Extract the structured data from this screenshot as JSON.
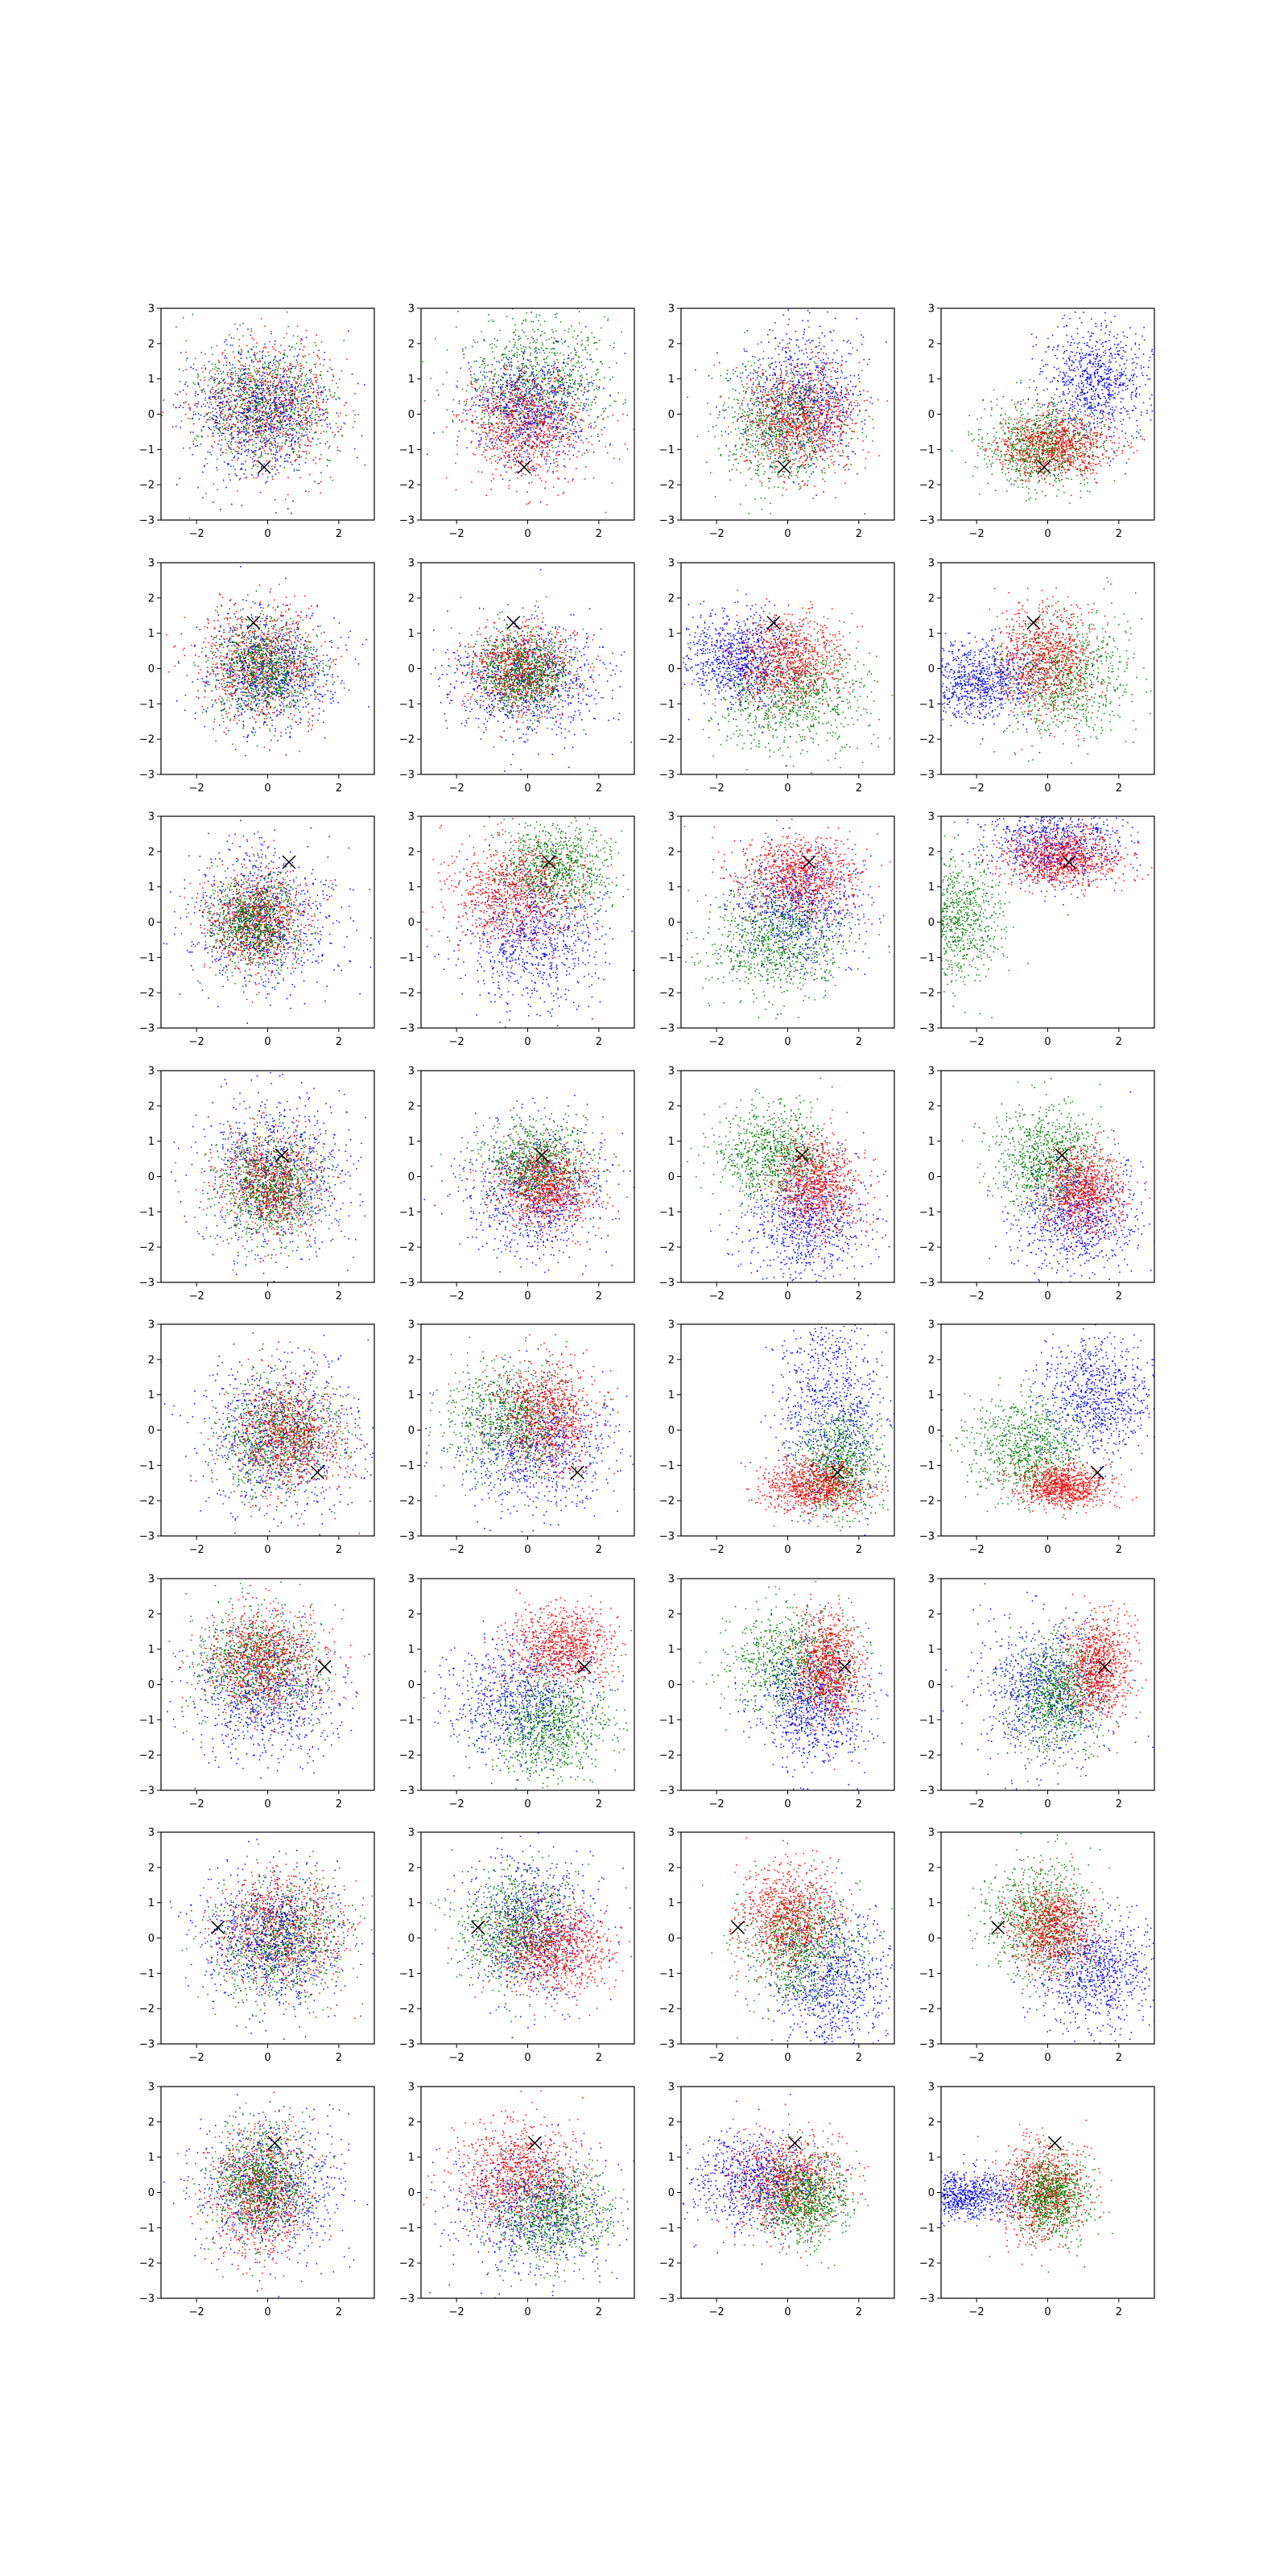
{
  "chart_data": {
    "type": "scatter",
    "title": "",
    "xlabel": "",
    "ylabel": "",
    "layout": {
      "rows": 8,
      "cols": 4
    },
    "xlim": [
      -3,
      3
    ],
    "ylim": [
      -3,
      3
    ],
    "x_ticks": [
      -2,
      0,
      2
    ],
    "y_ticks": [
      -3,
      -2,
      -1,
      0,
      1,
      2,
      3
    ],
    "x_tick_labels": [
      "−2",
      "0",
      "2"
    ],
    "y_tick_labels": [
      "−3",
      "−2",
      "−1",
      "0",
      "1",
      "2",
      "3"
    ],
    "grid": false,
    "legend": "none",
    "colors": {
      "red": "#ff0000",
      "green": "#008000",
      "blue": "#0000ff",
      "marker": "#000000"
    },
    "points_per_cloud": 850,
    "panels": [
      {
        "marker": [
          -0.1,
          -1.5
        ],
        "clouds": [
          {
            "color": "red",
            "cx": 0.0,
            "cy": 0.2,
            "sx": 0.95,
            "sy": 0.85
          },
          {
            "color": "green",
            "cx": -0.1,
            "cy": 0.3,
            "sx": 0.95,
            "sy": 0.85
          },
          {
            "color": "blue",
            "cx": -0.2,
            "cy": 0.0,
            "sx": 1.0,
            "sy": 0.9
          }
        ]
      },
      {
        "marker": [
          -0.1,
          -1.5
        ],
        "clouds": [
          {
            "color": "green",
            "cx": 0.2,
            "cy": 1.0,
            "sx": 1.0,
            "sy": 0.9
          },
          {
            "color": "blue",
            "cx": 0.0,
            "cy": 0.2,
            "sx": 0.9,
            "sy": 0.85
          },
          {
            "color": "red",
            "cx": 0.0,
            "cy": -0.3,
            "sx": 0.85,
            "sy": 0.8
          }
        ]
      },
      {
        "marker": [
          -0.1,
          -1.5
        ],
        "clouds": [
          {
            "color": "blue",
            "cx": 0.4,
            "cy": 0.5,
            "sx": 0.9,
            "sy": 1.0
          },
          {
            "color": "green",
            "cx": -0.2,
            "cy": -0.3,
            "sx": 0.85,
            "sy": 0.85
          },
          {
            "color": "red",
            "cx": 0.4,
            "cy": -0.1,
            "sx": 0.8,
            "sy": 0.75
          }
        ]
      },
      {
        "marker": [
          -0.1,
          -1.5
        ],
        "clouds": [
          {
            "color": "blue",
            "cx": 1.3,
            "cy": 0.9,
            "sx": 0.75,
            "sy": 0.85
          },
          {
            "color": "green",
            "cx": -0.2,
            "cy": -0.9,
            "sx": 0.8,
            "sy": 0.6
          },
          {
            "color": "red",
            "cx": 0.2,
            "cy": -0.9,
            "sx": 0.8,
            "sy": 0.45
          }
        ]
      },
      {
        "marker": [
          -0.4,
          1.3
        ],
        "clouds": [
          {
            "color": "red",
            "cx": -0.2,
            "cy": 0.2,
            "sx": 0.8,
            "sy": 0.8
          },
          {
            "color": "blue",
            "cx": 0.1,
            "cy": -0.1,
            "sx": 0.9,
            "sy": 0.85
          },
          {
            "color": "green",
            "cx": -0.1,
            "cy": 0.0,
            "sx": 0.7,
            "sy": 0.7
          }
        ]
      },
      {
        "marker": [
          -0.4,
          1.3
        ],
        "clouds": [
          {
            "color": "blue",
            "cx": 0.0,
            "cy": -0.3,
            "sx": 1.1,
            "sy": 0.8
          },
          {
            "color": "red",
            "cx": -0.2,
            "cy": 0.0,
            "sx": 0.75,
            "sy": 0.6
          },
          {
            "color": "green",
            "cx": -0.1,
            "cy": -0.1,
            "sx": 0.7,
            "sy": 0.6
          }
        ]
      },
      {
        "marker": [
          -0.4,
          1.3
        ],
        "clouds": [
          {
            "color": "green",
            "cx": 0.2,
            "cy": -0.8,
            "sx": 1.1,
            "sy": 0.8
          },
          {
            "color": "blue",
            "cx": -1.4,
            "cy": 0.3,
            "sx": 0.8,
            "sy": 0.65
          },
          {
            "color": "red",
            "cx": 0.0,
            "cy": 0.2,
            "sx": 0.75,
            "sy": 0.65
          }
        ]
      },
      {
        "marker": [
          -0.4,
          1.3
        ],
        "clouds": [
          {
            "color": "green",
            "cx": 0.6,
            "cy": -0.2,
            "sx": 0.95,
            "sy": 0.9
          },
          {
            "color": "blue",
            "cx": -1.9,
            "cy": -0.4,
            "sx": 0.8,
            "sy": 0.55
          },
          {
            "color": "red",
            "cx": 0.0,
            "cy": 0.2,
            "sx": 0.7,
            "sy": 0.75
          }
        ]
      },
      {
        "marker": [
          0.6,
          1.7
        ],
        "clouds": [
          {
            "color": "blue",
            "cx": -0.1,
            "cy": 0.1,
            "sx": 1.0,
            "sy": 1.0
          },
          {
            "color": "red",
            "cx": -0.3,
            "cy": 0.1,
            "sx": 0.7,
            "sy": 0.7
          },
          {
            "color": "green",
            "cx": -0.4,
            "cy": 0.0,
            "sx": 0.65,
            "sy": 0.65
          }
        ]
      },
      {
        "marker": [
          0.6,
          1.7
        ],
        "clouds": [
          {
            "color": "blue",
            "cx": 0.2,
            "cy": -0.4,
            "sx": 1.0,
            "sy": 1.0
          },
          {
            "color": "green",
            "cx": 0.8,
            "cy": 1.5,
            "sx": 0.8,
            "sy": 0.6
          },
          {
            "color": "red",
            "cx": -0.3,
            "cy": 0.8,
            "sx": 0.95,
            "sy": 0.75
          }
        ]
      },
      {
        "marker": [
          0.6,
          1.7
        ],
        "clouds": [
          {
            "color": "blue",
            "cx": 0.3,
            "cy": 0.4,
            "sx": 0.9,
            "sy": 0.9
          },
          {
            "color": "green",
            "cx": -0.4,
            "cy": -0.5,
            "sx": 1.0,
            "sy": 0.8
          },
          {
            "color": "red",
            "cx": 0.3,
            "cy": 1.3,
            "sx": 0.8,
            "sy": 0.55
          }
        ]
      },
      {
        "marker": [
          0.6,
          1.7
        ],
        "clouds": [
          {
            "color": "green",
            "cx": -2.6,
            "cy": 0.1,
            "sx": 0.65,
            "sy": 0.9
          },
          {
            "color": "blue",
            "cx": 0.2,
            "cy": 2.3,
            "sx": 1.0,
            "sy": 0.6
          },
          {
            "color": "red",
            "cx": 0.4,
            "cy": 1.8,
            "sx": 0.8,
            "sy": 0.4
          }
        ]
      },
      {
        "marker": [
          0.4,
          0.6
        ],
        "clouds": [
          {
            "color": "blue",
            "cx": 0.2,
            "cy": 0.1,
            "sx": 1.0,
            "sy": 1.1
          },
          {
            "color": "red",
            "cx": 0.1,
            "cy": -0.2,
            "sx": 0.7,
            "sy": 0.7
          },
          {
            "color": "green",
            "cx": 0.1,
            "cy": -0.3,
            "sx": 0.75,
            "sy": 0.75
          }
        ]
      },
      {
        "marker": [
          0.4,
          0.6
        ],
        "clouds": [
          {
            "color": "blue",
            "cx": 0.2,
            "cy": -0.4,
            "sx": 1.0,
            "sy": 1.0
          },
          {
            "color": "green",
            "cx": 0.2,
            "cy": 0.3,
            "sx": 0.7,
            "sy": 0.6
          },
          {
            "color": "red",
            "cx": 0.5,
            "cy": -0.3,
            "sx": 0.7,
            "sy": 0.6
          }
        ]
      },
      {
        "marker": [
          0.4,
          0.6
        ],
        "clouds": [
          {
            "color": "blue",
            "cx": 0.5,
            "cy": -1.2,
            "sx": 0.9,
            "sy": 0.9
          },
          {
            "color": "green",
            "cx": -0.4,
            "cy": 0.6,
            "sx": 0.8,
            "sy": 0.7
          },
          {
            "color": "red",
            "cx": 0.8,
            "cy": -0.3,
            "sx": 0.6,
            "sy": 0.65
          }
        ]
      },
      {
        "marker": [
          0.4,
          0.6
        ],
        "clouds": [
          {
            "color": "blue",
            "cx": 0.8,
            "cy": -1.1,
            "sx": 0.9,
            "sy": 0.8
          },
          {
            "color": "green",
            "cx": 0.0,
            "cy": 0.5,
            "sx": 0.75,
            "sy": 0.7
          },
          {
            "color": "red",
            "cx": 1.0,
            "cy": -0.4,
            "sx": 0.55,
            "sy": 0.6
          }
        ]
      },
      {
        "marker": [
          1.4,
          -1.2
        ],
        "clouds": [
          {
            "color": "blue",
            "cx": 0.3,
            "cy": -0.1,
            "sx": 1.1,
            "sy": 1.1
          },
          {
            "color": "green",
            "cx": 0.3,
            "cy": -0.2,
            "sx": 0.85,
            "sy": 0.85
          },
          {
            "color": "red",
            "cx": 0.5,
            "cy": -0.2,
            "sx": 0.75,
            "sy": 0.8
          }
        ]
      },
      {
        "marker": [
          1.4,
          -1.2
        ],
        "clouds": [
          {
            "color": "blue",
            "cx": 0.3,
            "cy": -0.5,
            "sx": 1.0,
            "sy": 0.9
          },
          {
            "color": "green",
            "cx": -0.5,
            "cy": 0.3,
            "sx": 0.9,
            "sy": 0.8
          },
          {
            "color": "red",
            "cx": 0.5,
            "cy": 0.4,
            "sx": 0.7,
            "sy": 0.75
          }
        ]
      },
      {
        "marker": [
          1.4,
          -1.2
        ],
        "clouds": [
          {
            "color": "blue",
            "cx": 1.2,
            "cy": 0.6,
            "sx": 0.75,
            "sy": 1.4
          },
          {
            "color": "green",
            "cx": 1.4,
            "cy": -1.0,
            "sx": 0.6,
            "sy": 0.8
          },
          {
            "color": "red",
            "cx": 0.8,
            "cy": -1.6,
            "sx": 0.75,
            "sy": 0.35
          }
        ]
      },
      {
        "marker": [
          1.4,
          -1.2
        ],
        "clouds": [
          {
            "color": "blue",
            "cx": 1.4,
            "cy": 1.0,
            "sx": 0.8,
            "sy": 0.8
          },
          {
            "color": "green",
            "cx": -0.6,
            "cy": -0.5,
            "sx": 0.8,
            "sy": 0.7
          },
          {
            "color": "red",
            "cx": 0.4,
            "cy": -1.6,
            "sx": 0.65,
            "sy": 0.3
          }
        ]
      },
      {
        "marker": [
          1.6,
          0.5
        ],
        "clouds": [
          {
            "color": "blue",
            "cx": -0.1,
            "cy": -0.2,
            "sx": 1.0,
            "sy": 0.9
          },
          {
            "color": "green",
            "cx": -0.3,
            "cy": 0.6,
            "sx": 0.8,
            "sy": 0.75
          },
          {
            "color": "red",
            "cx": -0.1,
            "cy": 0.7,
            "sx": 0.8,
            "sy": 0.75
          }
        ]
      },
      {
        "marker": [
          1.6,
          0.5
        ],
        "clouds": [
          {
            "color": "blue",
            "cx": -0.2,
            "cy": -0.4,
            "sx": 1.0,
            "sy": 0.9
          },
          {
            "color": "green",
            "cx": 0.6,
            "cy": -1.2,
            "sx": 0.8,
            "sy": 0.7
          },
          {
            "color": "red",
            "cx": 1.0,
            "cy": 1.1,
            "sx": 0.7,
            "sy": 0.55
          }
        ]
      },
      {
        "marker": [
          1.6,
          0.5
        ],
        "clouds": [
          {
            "color": "green",
            "cx": 0.1,
            "cy": 0.6,
            "sx": 0.9,
            "sy": 0.8
          },
          {
            "color": "blue",
            "cx": 0.7,
            "cy": -0.6,
            "sx": 0.75,
            "sy": 0.85
          },
          {
            "color": "red",
            "cx": 1.1,
            "cy": 0.5,
            "sx": 0.45,
            "sy": 0.7
          }
        ]
      },
      {
        "marker": [
          1.6,
          0.5
        ],
        "clouds": [
          {
            "color": "blue",
            "cx": -0.1,
            "cy": -0.1,
            "sx": 1.0,
            "sy": 0.95
          },
          {
            "color": "green",
            "cx": 0.3,
            "cy": -0.3,
            "sx": 0.6,
            "sy": 0.8
          },
          {
            "color": "red",
            "cx": 1.4,
            "cy": 0.5,
            "sx": 0.45,
            "sy": 0.7
          }
        ]
      },
      {
        "marker": [
          -1.4,
          0.3
        ],
        "clouds": [
          {
            "color": "red",
            "cx": 0.4,
            "cy": 0.2,
            "sx": 0.9,
            "sy": 0.8
          },
          {
            "color": "green",
            "cx": 0.4,
            "cy": 0.0,
            "sx": 0.9,
            "sy": 0.85
          },
          {
            "color": "blue",
            "cx": 0.1,
            "cy": 0.0,
            "sx": 1.0,
            "sy": 0.95
          }
        ]
      },
      {
        "marker": [
          -1.4,
          0.3
        ],
        "clouds": [
          {
            "color": "blue",
            "cx": 0.1,
            "cy": 0.3,
            "sx": 0.9,
            "sy": 1.0
          },
          {
            "color": "green",
            "cx": -0.3,
            "cy": 0.3,
            "sx": 0.8,
            "sy": 0.8
          },
          {
            "color": "red",
            "cx": 0.7,
            "cy": -0.3,
            "sx": 0.8,
            "sy": 0.65
          }
        ]
      },
      {
        "marker": [
          -1.4,
          0.3
        ],
        "clouds": [
          {
            "color": "blue",
            "cx": 1.2,
            "cy": -1.2,
            "sx": 0.8,
            "sy": 1.1
          },
          {
            "color": "green",
            "cx": 0.4,
            "cy": -0.2,
            "sx": 0.8,
            "sy": 0.8
          },
          {
            "color": "red",
            "cx": 0.0,
            "cy": 0.6,
            "sx": 0.7,
            "sy": 0.7
          }
        ]
      },
      {
        "marker": [
          -1.4,
          0.3
        ],
        "clouds": [
          {
            "color": "blue",
            "cx": 1.4,
            "cy": -1.0,
            "sx": 0.85,
            "sy": 0.8
          },
          {
            "color": "green",
            "cx": -0.2,
            "cy": 0.6,
            "sx": 0.75,
            "sy": 0.8
          },
          {
            "color": "red",
            "cx": 0.1,
            "cy": 0.3,
            "sx": 0.6,
            "sy": 0.6
          }
        ]
      },
      {
        "marker": [
          0.2,
          1.4
        ],
        "clouds": [
          {
            "color": "blue",
            "cx": 0.1,
            "cy": 0.1,
            "sx": 1.0,
            "sy": 1.0
          },
          {
            "color": "red",
            "cx": -0.2,
            "cy": 0.0,
            "sx": 0.7,
            "sy": 0.9
          },
          {
            "color": "green",
            "cx": -0.2,
            "cy": 0.3,
            "sx": 0.65,
            "sy": 0.8
          }
        ]
      },
      {
        "marker": [
          0.2,
          1.4
        ],
        "clouds": [
          {
            "color": "blue",
            "cx": 0.0,
            "cy": -0.5,
            "sx": 1.1,
            "sy": 0.9
          },
          {
            "color": "green",
            "cx": 0.7,
            "cy": -0.6,
            "sx": 0.8,
            "sy": 0.7
          },
          {
            "color": "red",
            "cx": -0.3,
            "cy": 0.5,
            "sx": 0.9,
            "sy": 0.75
          }
        ]
      },
      {
        "marker": [
          0.2,
          1.4
        ],
        "clouds": [
          {
            "color": "blue",
            "cx": -0.9,
            "cy": 0.3,
            "sx": 1.0,
            "sy": 0.65
          },
          {
            "color": "red",
            "cx": 0.0,
            "cy": 0.3,
            "sx": 0.75,
            "sy": 0.7
          },
          {
            "color": "green",
            "cx": 0.5,
            "cy": -0.2,
            "sx": 0.6,
            "sy": 0.6
          }
        ]
      },
      {
        "marker": [
          0.2,
          1.4
        ],
        "clouds": [
          {
            "color": "blue",
            "cx": -2.4,
            "cy": -0.1,
            "sx": 0.85,
            "sy": 0.35
          },
          {
            "color": "red",
            "cx": -0.2,
            "cy": 0.0,
            "sx": 0.6,
            "sy": 0.7
          },
          {
            "color": "green",
            "cx": 0.1,
            "cy": -0.1,
            "sx": 0.55,
            "sy": 0.6
          }
        ]
      }
    ]
  }
}
